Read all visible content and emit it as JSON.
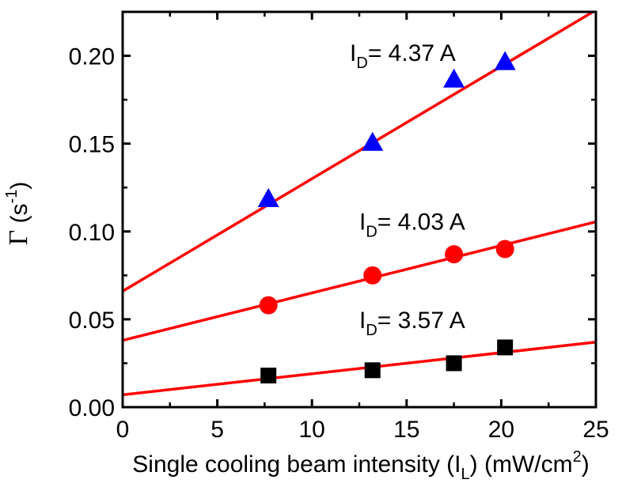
{
  "chart_data": {
    "type": "scatter",
    "title": "",
    "xlabel": "Single cooling beam intensity (I_L) (mW/cm^2)",
    "xlabel_parts": {
      "main": "Single cooling beam intensity (I",
      "sub": "L",
      "close": ") (mW/cm",
      "sup": "2",
      "end": ")"
    },
    "ylabel": "Γ (s^-1)",
    "ylabel_parts": {
      "symbol": "Γ",
      "open": " (s",
      "sup": "-1",
      "close": ")"
    },
    "xlim": [
      0,
      25
    ],
    "ylim": [
      0,
      0.225
    ],
    "xticks": [
      0,
      5,
      10,
      15,
      20,
      25
    ],
    "xtick_labels": [
      "0",
      "5",
      "10",
      "15",
      "20",
      "25"
    ],
    "yticks": [
      0.0,
      0.05,
      0.1,
      0.15,
      0.2
    ],
    "ytick_labels": [
      "0.00",
      "0.05",
      "0.10",
      "0.15",
      "0.20"
    ],
    "fit_color": "#ff0000",
    "series": [
      {
        "name": "I_D = 3.57 A",
        "label_parts": {
          "main": "I",
          "sub": "D",
          "rest": "= 3.57 A"
        },
        "marker": "square",
        "color": "#000000",
        "x": [
          7.7,
          13.2,
          17.5,
          20.2
        ],
        "y": [
          0.018,
          0.021,
          0.025,
          0.034
        ],
        "fit": {
          "intercept": 0.007,
          "slope": 0.0012
        },
        "label_at": [
          12.5,
          0.045
        ]
      },
      {
        "name": "I_D = 4.03 A",
        "label_parts": {
          "main": "I",
          "sub": "D",
          "rest": "= 4.03 A"
        },
        "marker": "circle",
        "color": "#ff0000",
        "x": [
          7.7,
          13.2,
          17.5,
          20.2
        ],
        "y": [
          0.058,
          0.075,
          0.087,
          0.09
        ],
        "fit": {
          "intercept": 0.038,
          "slope": 0.0027
        },
        "label_at": [
          12.5,
          0.101
        ]
      },
      {
        "name": "I_D = 4.37 A",
        "label_parts": {
          "main": "I",
          "sub": "D",
          "rest": "= 4.37 A"
        },
        "marker": "triangle",
        "color": "#0000ff",
        "x": [
          7.7,
          13.2,
          17.5,
          20.2
        ],
        "y": [
          0.118,
          0.15,
          0.186,
          0.196
        ],
        "fit": {
          "intercept": 0.066,
          "slope": 0.0064
        },
        "label_at": [
          12.0,
          0.197
        ]
      }
    ]
  }
}
